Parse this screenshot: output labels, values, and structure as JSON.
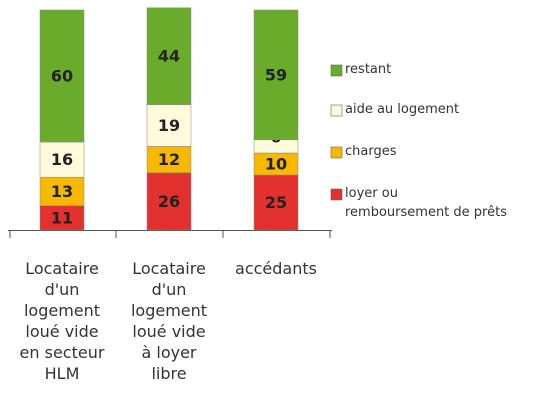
{
  "chart_data": {
    "type": "stacked_bar",
    "categories": [
      "Locataire\nd'un\nlogement\nloué vide\nen secteur\nHLM",
      "Locataire\nd'un\nlogement\nloué vide\nà loyer\nlibre",
      "accédants"
    ],
    "series": [
      {
        "name": "loyer  ou\nremboursement de prêts",
        "color": "#e2312f",
        "values": [
          11,
          26,
          25
        ]
      },
      {
        "name": "charges",
        "color": "#f6b900",
        "values": [
          13,
          12,
          10
        ]
      },
      {
        "name": "aide au logement",
        "color": "#fdfbd9",
        "values": [
          16,
          19,
          6
        ]
      },
      {
        "name": "restant",
        "color": "#6aab2b",
        "values": [
          60,
          44,
          59
        ]
      }
    ]
  }
}
